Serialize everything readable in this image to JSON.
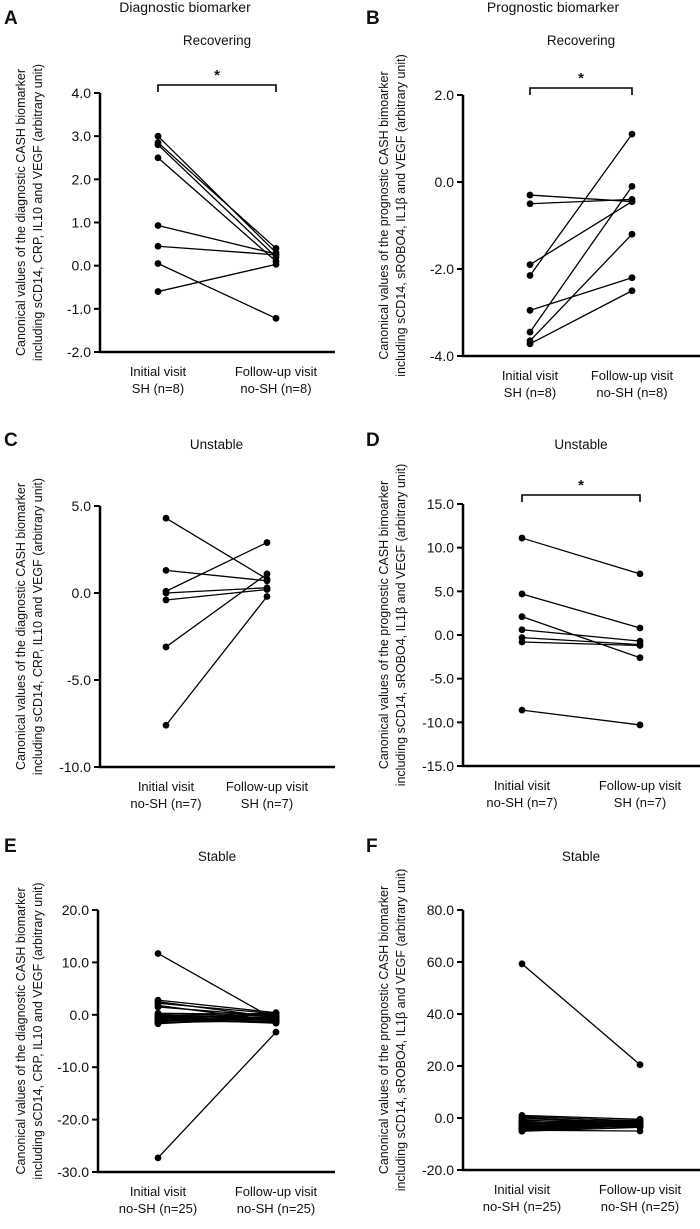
{
  "column_titles": [
    "Diagnostic biomarker",
    "Prognostic biomarker"
  ],
  "chart_data": [
    {
      "panel": "A",
      "type": "line",
      "title": "Recovering",
      "ylabel": [
        "Canonical values of the diagnostic CASH biomarker",
        "including sCD14, CRP, IL10 and VEGF (arbitrary unit)"
      ],
      "categories": [
        [
          "Initial visit",
          "SH (n=8)"
        ],
        [
          "Follow-up visit",
          "no-SH (n=8)"
        ]
      ],
      "ylim": [
        -2,
        4
      ],
      "yticks": [
        "4.0",
        "3.0",
        "2.0",
        "1.0",
        "0.0",
        "-1.0",
        "-2.0"
      ],
      "significance": "*",
      "pairs": [
        [
          3.0,
          0.3
        ],
        [
          2.85,
          0.4
        ],
        [
          2.8,
          0.2
        ],
        [
          2.5,
          0.1
        ],
        [
          0.93,
          0.27
        ],
        [
          0.45,
          0.25
        ],
        [
          0.05,
          -1.22
        ],
        [
          -0.6,
          0.03
        ]
      ]
    },
    {
      "panel": "B",
      "type": "line",
      "title": "Recovering",
      "ylabel": [
        "Canonical values of the prognostic CASH bimoarker",
        "including sCD14, sROBO4, IL1β and VEGF (arbitrary unit)"
      ],
      "categories": [
        [
          "Initial visit",
          "SH (n=8)"
        ],
        [
          "Follow-up visit",
          "no-SH (n=8)"
        ]
      ],
      "ylim": [
        -4,
        2
      ],
      "yticks": [
        "2.0",
        "0.0",
        "-2.0",
        "-4.0"
      ],
      "significance": "*",
      "pairs": [
        [
          -0.3,
          -0.45
        ],
        [
          -0.5,
          -0.4
        ],
        [
          -1.9,
          -0.45
        ],
        [
          -2.15,
          1.1
        ],
        [
          -2.95,
          -2.2
        ],
        [
          -3.45,
          -0.1
        ],
        [
          -3.65,
          -1.2
        ],
        [
          -3.72,
          -2.5
        ]
      ]
    },
    {
      "panel": "C",
      "type": "line",
      "title": "Unstable",
      "ylabel": [
        "Canonical values of the diagnostic CASH biomarker",
        "including sCD14, CRP, IL10 and VEGF (arbitrary unit)"
      ],
      "categories": [
        [
          "Initial visit",
          "no-SH (n=7)"
        ],
        [
          "Follow-up visit",
          "SH (n=7)"
        ]
      ],
      "ylim": [
        -10,
        5
      ],
      "yticks": [
        "5.0",
        "0.0",
        "-5.0",
        "-10.0"
      ],
      "significance": "",
      "pairs": [
        [
          4.3,
          0.8
        ],
        [
          1.3,
          0.7
        ],
        [
          0.1,
          2.9
        ],
        [
          0.0,
          0.3
        ],
        [
          -0.4,
          0.2
        ],
        [
          -3.1,
          1.1
        ],
        [
          -7.6,
          -0.2
        ]
      ]
    },
    {
      "panel": "D",
      "type": "line",
      "title": "Unstable",
      "ylabel": [
        "Canonical values of the prognostic CASH bimoarker",
        "including sCD14, sROBO4, IL1β and VEGF (arbitrary unit)"
      ],
      "categories": [
        [
          "Initial visit",
          "no-SH (n=7)"
        ],
        [
          "Follow-up visit",
          "SH (n=7)"
        ]
      ],
      "ylim": [
        -15,
        15
      ],
      "yticks": [
        "15.0",
        "10.0",
        "5.0",
        "0.0",
        "-5.0",
        "-10.0",
        "-15.0"
      ],
      "significance": "*",
      "pairs": [
        [
          11.1,
          7.0
        ],
        [
          4.7,
          0.8
        ],
        [
          2.1,
          -2.6
        ],
        [
          0.6,
          -0.7
        ],
        [
          -0.3,
          -1.1
        ],
        [
          -0.8,
          -1.2
        ],
        [
          -8.6,
          -10.3
        ]
      ]
    },
    {
      "panel": "E",
      "type": "line",
      "title": "Stable",
      "ylabel": [
        "Canonical values of the diagnostic CASH biomarker",
        "including sCD14, CRP, IL10 and VEGF (arbitrary unit)"
      ],
      "categories": [
        [
          "Initial visit",
          "no-SH (n=25)"
        ],
        [
          "Follow-up visit",
          "no-SH (n=25)"
        ]
      ],
      "ylim": [
        -30,
        20
      ],
      "yticks": [
        "20.0",
        "10.0",
        "0.0",
        "-10.0",
        "-20.0",
        "-30.0"
      ],
      "significance": "",
      "pairs": [
        [
          11.7,
          -1.0
        ],
        [
          2.8,
          0.4
        ],
        [
          2.5,
          -0.5
        ],
        [
          2.2,
          0.2
        ],
        [
          1.8,
          -1.2
        ],
        [
          1.5,
          -0.3
        ],
        [
          0.3,
          0.1
        ],
        [
          0.1,
          -0.8
        ],
        [
          0.0,
          -1.5
        ],
        [
          -0.1,
          0.3
        ],
        [
          -0.2,
          -0.2
        ],
        [
          -0.3,
          -1.0
        ],
        [
          -0.4,
          0.0
        ],
        [
          -0.5,
          -1.3
        ],
        [
          -0.6,
          -0.6
        ],
        [
          -0.7,
          0.2
        ],
        [
          -0.8,
          -1.6
        ],
        [
          -0.9,
          -0.4
        ],
        [
          -1.0,
          -0.9
        ],
        [
          -1.1,
          -1.4
        ],
        [
          -1.2,
          0.1
        ],
        [
          -1.3,
          -0.7
        ],
        [
          -1.5,
          -1.1
        ],
        [
          -1.7,
          -0.5
        ],
        [
          -27.3,
          -3.3
        ]
      ]
    },
    {
      "panel": "F",
      "type": "line",
      "title": "Stable",
      "ylabel": [
        "Canonical values of the prognostic CASH biomarker",
        "including sCD14, sROBO4, IL1β and VEGF (arbitrary unit)"
      ],
      "categories": [
        [
          "Initial visit",
          "no-SH (n=25)"
        ],
        [
          "Follow-up visit",
          "no-SH (n=25)"
        ]
      ],
      "ylim": [
        -20,
        80
      ],
      "yticks": [
        "80.0",
        "60.0",
        "40.0",
        "20.0",
        "0.0",
        "-20.0"
      ],
      "significance": "",
      "pairs": [
        [
          59.3,
          20.5
        ],
        [
          1.0,
          -0.5
        ],
        [
          0.6,
          -1.2
        ],
        [
          0.2,
          -2.0
        ],
        [
          -0.3,
          -1.5
        ],
        [
          -0.8,
          -2.5
        ],
        [
          -1.2,
          -1.0
        ],
        [
          -1.5,
          -3.0
        ],
        [
          -1.8,
          -1.8
        ],
        [
          -2.0,
          -0.8
        ],
        [
          -2.3,
          -2.2
        ],
        [
          -2.6,
          -1.4
        ],
        [
          -2.9,
          -2.8
        ],
        [
          -3.1,
          -1.6
        ],
        [
          -3.3,
          -3.5
        ],
        [
          -3.5,
          -1.9
        ],
        [
          -3.7,
          -2.4
        ],
        [
          -3.9,
          -1.1
        ],
        [
          -4.1,
          -3.2
        ],
        [
          -4.3,
          -2.0
        ],
        [
          -4.5,
          -2.7
        ],
        [
          -4.7,
          -5.0
        ],
        [
          -4.9,
          -1.7
        ],
        [
          -5.0,
          -2.9
        ],
        [
          -5.1,
          -3.6
        ]
      ]
    }
  ]
}
